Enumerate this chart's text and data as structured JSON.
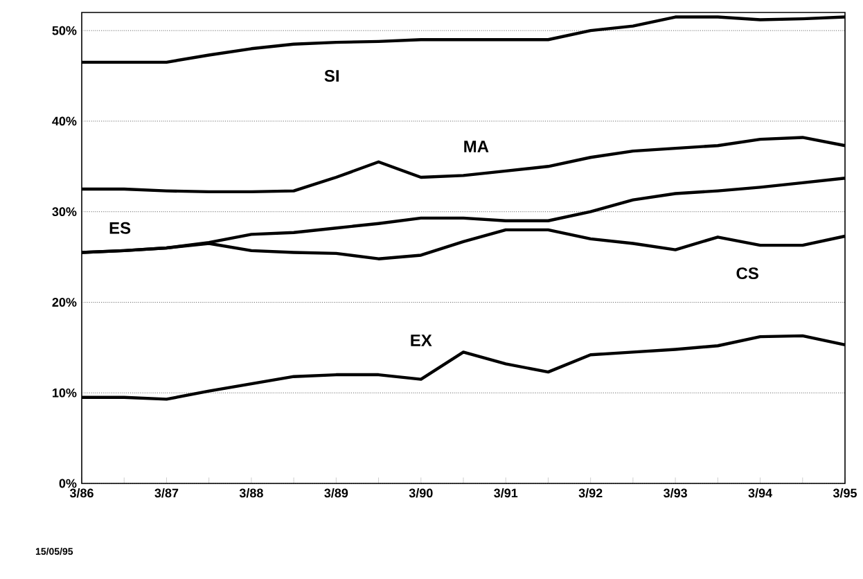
{
  "chart_data": {
    "type": "line",
    "categories": [
      "3/86",
      null,
      "3/87",
      null,
      "3/88",
      null,
      "3/89",
      null,
      "3/90",
      null,
      "3/91",
      null,
      "3/92",
      null,
      "3/93",
      null,
      "3/94",
      null,
      "3/95"
    ],
    "series": [
      {
        "name": "SI",
        "color": "#000000",
        "values": [
          46.5,
          46.5,
          46.5,
          47.3,
          48,
          48.5,
          48.7,
          48.8,
          49,
          49,
          49,
          49,
          50,
          50.5,
          51.5,
          51.5,
          51.2,
          51.3,
          51.5
        ]
      },
      {
        "name": "MA",
        "color": "#000000",
        "values": [
          32.5,
          32.5,
          32.3,
          32.2,
          32.2,
          32.3,
          33.8,
          35.5,
          33.8,
          34,
          34.5,
          35,
          36,
          36.7,
          37,
          37.3,
          38,
          38.2,
          37.3
        ]
      },
      {
        "name": "ES",
        "color": "#000000",
        "values": [
          25.5,
          25.7,
          26,
          26.6,
          27.5,
          27.7,
          28.2,
          28.7,
          29.3,
          29.3,
          29,
          29,
          30,
          31.3,
          32,
          32.3,
          32.7,
          33.2,
          33.7
        ]
      },
      {
        "name": "CS",
        "color": "#000000",
        "values": [
          25.5,
          25.7,
          26,
          26.5,
          25.7,
          25.5,
          25.4,
          24.8,
          25.2,
          26.7,
          28,
          28,
          27,
          26.5,
          25.8,
          27.2,
          26.3,
          26.3,
          27.3
        ]
      },
      {
        "name": "EX",
        "color": "#000000",
        "values": [
          9.5,
          9.5,
          9.3,
          10.2,
          11,
          11.8,
          12,
          12,
          11.5,
          14.5,
          13.2,
          12.3,
          14.2,
          14.5,
          14.8,
          15.2,
          16.2,
          16.3,
          15.3
        ]
      }
    ],
    "ylim": [
      0,
      52
    ],
    "yticks": [
      {
        "value": 0,
        "label": "0%"
      },
      {
        "value": 10,
        "label": "10%"
      },
      {
        "value": 20,
        "label": "20%"
      },
      {
        "value": 30,
        "label": "30%"
      },
      {
        "value": 40,
        "label": "40%"
      },
      {
        "value": 50,
        "label": "50%"
      }
    ],
    "grid": "y",
    "marker": "none",
    "line_style": "solid",
    "annotations": [
      "15/05/95"
    ]
  }
}
